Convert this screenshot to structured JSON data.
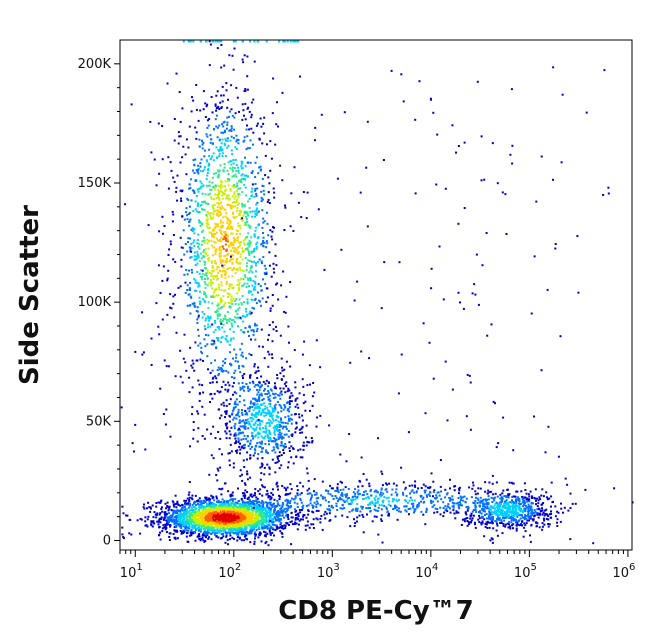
{
  "chart_data": {
    "type": "scatter",
    "plot_style": "flow-cytometry density dot plot (pseudocolor)",
    "xlabel": "CD8 PE-Cy™7",
    "ylabel": "Side Scatter",
    "x_scale": "log",
    "xlim": [
      7,
      1100000
    ],
    "ylim": [
      -4000,
      210000
    ],
    "x_ticks": [
      {
        "value": 10,
        "base": "10",
        "exp": "1"
      },
      {
        "value": 100,
        "base": "10",
        "exp": "2"
      },
      {
        "value": 1000,
        "base": "10",
        "exp": "3"
      },
      {
        "value": 10000,
        "base": "10",
        "exp": "4"
      },
      {
        "value": 100000,
        "base": "10",
        "exp": "5"
      },
      {
        "value": 1000000,
        "base": "10",
        "exp": "6"
      }
    ],
    "y_ticks": [
      {
        "value": 0,
        "label": "0"
      },
      {
        "value": 50000,
        "label": "50K"
      },
      {
        "value": 100000,
        "label": "100K"
      },
      {
        "value": 150000,
        "label": "150K"
      },
      {
        "value": 200000,
        "label": "200K"
      }
    ],
    "density_colors": [
      "#0000cc",
      "#0070ff",
      "#00d0ff",
      "#30e890",
      "#c8f000",
      "#ffd000",
      "#ff6000",
      "#e00000"
    ],
    "populations": [
      {
        "x_center": 80,
        "y_center": 10000,
        "x_spread_decades": 0.28,
        "y_spread": 3500,
        "weight": 1.0
      },
      {
        "x_center": 80,
        "y_center": 125000,
        "x_spread_decades": 0.22,
        "y_spread": 28000,
        "weight": 0.75
      },
      {
        "x_center": 200,
        "y_center": 50000,
        "x_spread_decades": 0.2,
        "y_spread": 10000,
        "weight": 0.3
      },
      {
        "x_center": 60000,
        "y_center": 13000,
        "x_spread_decades": 0.2,
        "y_spread": 3500,
        "weight": 0.28
      },
      {
        "x_center": 3000,
        "y_center": 17000,
        "x_spread_decades": 0.7,
        "y_spread": 4000,
        "weight": 0.25
      }
    ]
  }
}
